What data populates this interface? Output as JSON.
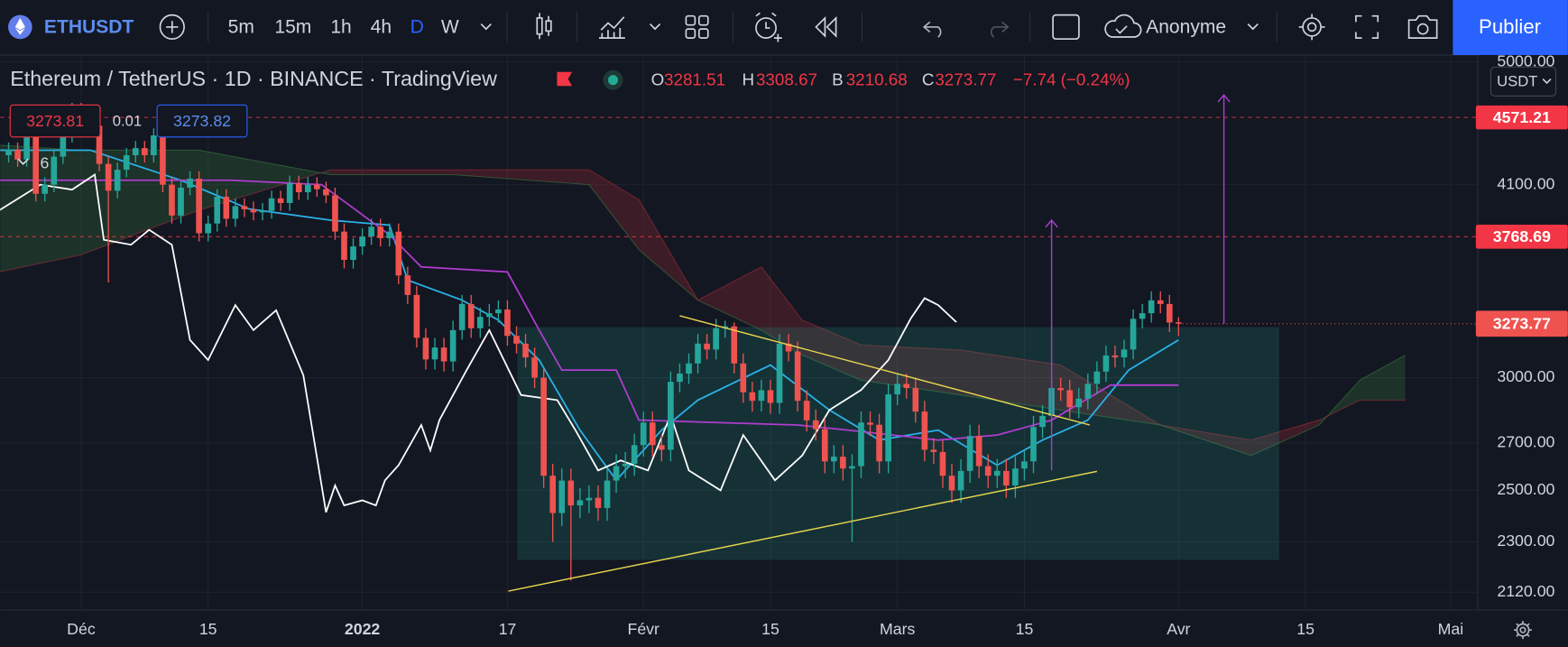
{
  "toolbar": {
    "symbol": "ETHUSDT",
    "intervals": [
      "5m",
      "15m",
      "1h",
      "4h",
      "D",
      "W"
    ],
    "account": "Anonyme",
    "publish": "Publier"
  },
  "legend": {
    "title": "Ethereum / TetherUS · 1D · BINANCE · TradingView",
    "open_label": "O",
    "high_label": "H",
    "low_label": "B",
    "close_label": "C",
    "change": "−7.74 (−0.24%)"
  },
  "quote": {
    "bid": 3273.81,
    "spread": 0.01,
    "ask": 3273.82
  },
  "indicator_count": 6,
  "currency": "USDT",
  "chart_data": {
    "type": "candlestick",
    "log_scale": true,
    "grid": true,
    "xlim": [
      -8.93,
      154
    ],
    "ylim": [
      2060,
      5057
    ],
    "xticks": [
      {
        "value": 0,
        "label": "Déc"
      },
      {
        "value": 14,
        "label": "15"
      },
      {
        "value": 31,
        "label": "2022"
      },
      {
        "value": 47,
        "label": "17"
      },
      {
        "value": 62,
        "label": "Févr"
      },
      {
        "value": 76,
        "label": "15"
      },
      {
        "value": 90,
        "label": "Mars"
      },
      {
        "value": 104,
        "label": "15"
      },
      {
        "value": 121,
        "label": "Avr"
      },
      {
        "value": 135,
        "label": "15"
      },
      {
        "value": 151,
        "label": "Mai"
      }
    ],
    "yticks": [
      {
        "value": 5000,
        "label": "5000.00"
      },
      {
        "value": 4100,
        "label": "4100.00"
      },
      {
        "value": 3000,
        "label": "3000.00"
      },
      {
        "value": 2700,
        "label": "2700.00"
      },
      {
        "value": 2500,
        "label": "2500.00"
      },
      {
        "value": 2300,
        "label": "2300.00"
      },
      {
        "value": 2120,
        "label": "2120.00"
      }
    ],
    "up_color": "#26a69a",
    "down_color": "#ef5350",
    "x": [
      -8,
      -7,
      -6,
      -5,
      -4,
      -3,
      -2,
      -1,
      0,
      1,
      2,
      3,
      4,
      5,
      6,
      7,
      8,
      9,
      10,
      11,
      12,
      13,
      14,
      15,
      16,
      17,
      18,
      19,
      20,
      21,
      22,
      23,
      24,
      25,
      26,
      27,
      28,
      29,
      30,
      31,
      32,
      33,
      34,
      35,
      36,
      37,
      38,
      39,
      40,
      41,
      42,
      43,
      44,
      45,
      46,
      47,
      48,
      49,
      50,
      51,
      52,
      53,
      54,
      55,
      56,
      57,
      58,
      59,
      60,
      61,
      62,
      63,
      64,
      65,
      66,
      67,
      68,
      69,
      70,
      71,
      72,
      73,
      74,
      75,
      76,
      77,
      78,
      79,
      80,
      81,
      82,
      83,
      84,
      85,
      86,
      87,
      88,
      89,
      90,
      91,
      92,
      93,
      94,
      95,
      96,
      97,
      98,
      99,
      100,
      101,
      102,
      103,
      104,
      105,
      106,
      107,
      108,
      109,
      110,
      111,
      112,
      113,
      114,
      115,
      116,
      117,
      118,
      119,
      120,
      121
    ],
    "open": [
      4300,
      4340,
      4270,
      4520,
      4040,
      4100,
      4290,
      4440,
      4630,
      4590,
      4510,
      4240,
      4060,
      4200,
      4300,
      4350,
      4300,
      4440,
      4100,
      3900,
      4080,
      4140,
      3790,
      3850,
      4020,
      3880,
      3960,
      3940,
      3920,
      3930,
      4010,
      3980,
      4110,
      4050,
      4100,
      4070,
      4030,
      3800,
      3630,
      3710,
      3770,
      3830,
      3760,
      3800,
      3540,
      3430,
      3200,
      3090,
      3150,
      3080,
      3240,
      3380,
      3250,
      3310,
      3330,
      3350,
      3210,
      3170,
      3100,
      3000,
      2560,
      2410,
      2540,
      2440,
      2460,
      2470,
      2430,
      2540,
      2600,
      2610,
      2690,
      2790,
      2690,
      2670,
      2980,
      3020,
      3070,
      3170,
      3140,
      3250,
      3260,
      3070,
      2930,
      2890,
      2940,
      2880,
      3170,
      3130,
      2890,
      2800,
      2760,
      2620,
      2640,
      2590,
      2600,
      2790,
      2780,
      2620,
      2920,
      2970,
      2950,
      2840,
      2670,
      2660,
      2560,
      2500,
      2580,
      2730,
      2600,
      2560,
      2580,
      2520,
      2590,
      2620,
      2770,
      2820,
      2950,
      2940,
      2860,
      2900,
      2970,
      3030,
      3110,
      3100,
      3140,
      3300,
      3330,
      3400,
      3380,
      3281.51
    ],
    "high": [
      4390,
      4390,
      4570,
      4570,
      4150,
      4340,
      4490,
      4680,
      4680,
      4640,
      4560,
      4290,
      4250,
      4350,
      4400,
      4400,
      4490,
      4490,
      4150,
      4130,
      4190,
      4190,
      3900,
      4070,
      4070,
      4010,
      4010,
      3990,
      3980,
      4060,
      4060,
      4160,
      4160,
      4150,
      4150,
      4120,
      4080,
      3850,
      3760,
      3820,
      3880,
      3880,
      3850,
      3850,
      3590,
      3480,
      3250,
      3200,
      3200,
      3290,
      3430,
      3430,
      3360,
      3380,
      3400,
      3400,
      3260,
      3220,
      3150,
      3050,
      2610,
      2590,
      2590,
      2510,
      2520,
      2520,
      2590,
      2650,
      2660,
      2740,
      2840,
      2840,
      2740,
      3030,
      3070,
      3120,
      3220,
      3220,
      3300,
      3290,
      3280,
      3120,
      2980,
      2990,
      2990,
      3220,
      3220,
      3180,
      2940,
      2850,
      2810,
      2690,
      2690,
      2650,
      2840,
      2840,
      2830,
      2970,
      3020,
      3020,
      3000,
      2890,
      2720,
      2710,
      2610,
      2630,
      2780,
      2780,
      2650,
      2630,
      2630,
      2640,
      2670,
      2820,
      2870,
      3000,
      3000,
      2990,
      2950,
      3020,
      3080,
      3160,
      3160,
      3190,
      3350,
      3380,
      3450,
      3450,
      3430,
      3308.67
    ],
    "low": [
      4250,
      4220,
      4220,
      3990,
      3990,
      4050,
      4240,
      4390,
      4540,
      4460,
      4190,
      3500,
      4010,
      4150,
      4250,
      4250,
      4250,
      4050,
      3850,
      3850,
      4030,
      3740,
      3740,
      3800,
      3830,
      3830,
      3890,
      3870,
      3870,
      3880,
      3930,
      3930,
      4000,
      4000,
      4020,
      3980,
      3750,
      3580,
      3580,
      3660,
      3720,
      3710,
      3710,
      3490,
      3380,
      3150,
      3040,
      3040,
      3030,
      3030,
      3190,
      3200,
      3200,
      3260,
      3280,
      3160,
      3120,
      3050,
      2950,
      2510,
      2300,
      2360,
      2160,
      2390,
      2410,
      2380,
      2380,
      2490,
      2550,
      2560,
      2640,
      2640,
      2620,
      2620,
      2930,
      2970,
      3020,
      3090,
      3090,
      3200,
      3020,
      2880,
      2840,
      2840,
      2830,
      2830,
      3080,
      2840,
      2750,
      2710,
      2570,
      2570,
      2540,
      2300,
      2550,
      2730,
      2570,
      2570,
      2870,
      2900,
      2790,
      2620,
      2610,
      2510,
      2450,
      2450,
      2530,
      2550,
      2510,
      2510,
      2470,
      2470,
      2540,
      2570,
      2720,
      2770,
      2890,
      2810,
      2810,
      2850,
      2920,
      2980,
      3050,
      3050,
      3090,
      3250,
      3280,
      3330,
      3230,
      3210.68
    ],
    "close": [
      4340,
      4270,
      4520,
      4040,
      4100,
      4290,
      4440,
      4630,
      4590,
      4510,
      4240,
      4060,
      4200,
      4300,
      4350,
      4300,
      4440,
      4100,
      3900,
      4080,
      4140,
      3790,
      3850,
      4020,
      3880,
      3960,
      3940,
      3920,
      3930,
      4010,
      3980,
      4110,
      4050,
      4100,
      4070,
      4030,
      3800,
      3630,
      3710,
      3770,
      3830,
      3760,
      3800,
      3540,
      3430,
      3200,
      3090,
      3150,
      3080,
      3240,
      3380,
      3250,
      3310,
      3330,
      3350,
      3210,
      3170,
      3100,
      3000,
      2560,
      2410,
      2540,
      2440,
      2460,
      2470,
      2430,
      2540,
      2600,
      2610,
      2690,
      2790,
      2690,
      2670,
      2980,
      3020,
      3070,
      3170,
      3140,
      3250,
      3260,
      3070,
      2930,
      2890,
      2940,
      2880,
      3170,
      3130,
      2890,
      2800,
      2760,
      2620,
      2640,
      2590,
      2600,
      2790,
      2780,
      2620,
      2920,
      2970,
      2950,
      2840,
      2670,
      2660,
      2560,
      2500,
      2580,
      2730,
      2600,
      2560,
      2580,
      2520,
      2590,
      2620,
      2770,
      2820,
      2950,
      2940,
      2860,
      2900,
      2970,
      3030,
      3110,
      3100,
      3140,
      3300,
      3330,
      3400,
      3380,
      3280,
      3273.77
    ],
    "lines": [
      {
        "color": "#2ab2e8",
        "x": [
          -9,
          1,
          11,
          18.5,
          27.5,
          34,
          36,
          42,
          46,
          50.5,
          55,
          59,
          64,
          68,
          76,
          82.5,
          88,
          94.5,
          101,
          106,
          111,
          115.5,
          121
        ],
        "values": [
          4335,
          4335,
          4129,
          3942,
          3871,
          3840,
          3513,
          3401,
          3293,
          3087,
          2756,
          2541,
          2756,
          2893,
          3062,
          2847,
          2712,
          2756,
          2604,
          2712,
          2801,
          3037,
          3189
        ]
      },
      {
        "color": "#b03ccf",
        "x": [
          -9,
          16.5,
          26.5,
          34,
          37.5,
          47,
          50.5,
          53,
          59,
          61.5,
          79,
          84.5,
          94.5,
          101,
          107,
          113.5,
          121
        ],
        "values": [
          4129,
          4129,
          4100,
          3780,
          3589,
          3560,
          3240,
          3037,
          3037,
          2801,
          2779,
          2756,
          2712,
          2734,
          2801,
          2964,
          2964
        ]
      },
      {
        "color": "#ffffff",
        "x": [
          -9,
          -4.5,
          -1,
          1.5,
          2.5,
          5.5,
          7.5,
          10,
          12,
          14,
          17,
          19,
          21.5,
          24.5,
          27,
          28,
          29,
          31,
          32.5,
          33.5,
          35,
          37.5,
          38.5,
          39.5,
          42.5,
          45,
          48.5,
          52.5,
          54.5,
          57,
          59.5,
          62.5,
          65,
          67,
          70.5,
          73,
          76.5,
          79.5,
          82.5,
          86,
          89,
          91.5,
          93,
          94.5,
          96.5
        ],
        "values": [
          3934,
          4100,
          4067,
          4167,
          3750,
          3720,
          3811,
          3720,
          3189,
          3087,
          3374,
          3240,
          3346,
          3012,
          2413,
          2520,
          2440,
          2460,
          2440,
          2541,
          2604,
          2779,
          2667,
          2801,
          3037,
          3240,
          2917,
          2893,
          2756,
          2582,
          2624,
          2582,
          2824,
          2582,
          2500,
          2734,
          2541,
          2645,
          2847,
          2941,
          3087,
          3304,
          3412,
          3374,
          3282
        ]
      }
    ],
    "cloud": {
      "up_color": "#4caf50",
      "down_color": "#f23645",
      "x": [
        -9,
        0,
        13,
        27.5,
        41,
        56,
        61.5,
        68,
        75,
        79.5,
        86,
        97,
        108,
        119,
        129,
        136.5,
        141,
        146
      ],
      "span_a": [
        4370,
        4335,
        4335,
        4167,
        4167,
        4100,
        3690,
        3401,
        3240,
        3112,
        2988,
        2917,
        2847,
        2779,
        2645,
        2779,
        2988,
        3112
      ],
      "span_b": [
        3560,
        3660,
        3934,
        4200,
        4200,
        4200,
        4001,
        3401,
        3589,
        3293,
        3163,
        3137,
        3062,
        2779,
        2712,
        2801,
        2893,
        2893
      ]
    },
    "hlines": [
      {
        "value": 4571.21,
        "color": "#f23645"
      },
      {
        "value": 3768.69,
        "color": "#f23645"
      }
    ],
    "drawings": {
      "rectangle": {
        "x": [
          48.1,
          132.1
        ],
        "y": [
          3256,
          2234
        ],
        "color": "#22ab94"
      },
      "trend_color": "#e8d44d",
      "trendlines": [
        {
          "x": [
            66,
            111.2
          ],
          "y": [
            3316,
            2779
          ]
        },
        {
          "x": [
            47.1,
            112
          ],
          "y": [
            2124,
            2578
          ]
        }
      ],
      "arrow_color": "#a43fc9",
      "arrows": [
        {
          "x": 107,
          "y": [
            2582,
            3871
          ]
        },
        {
          "x": 126,
          "y": [
            3273,
            4740
          ]
        }
      ]
    }
  }
}
